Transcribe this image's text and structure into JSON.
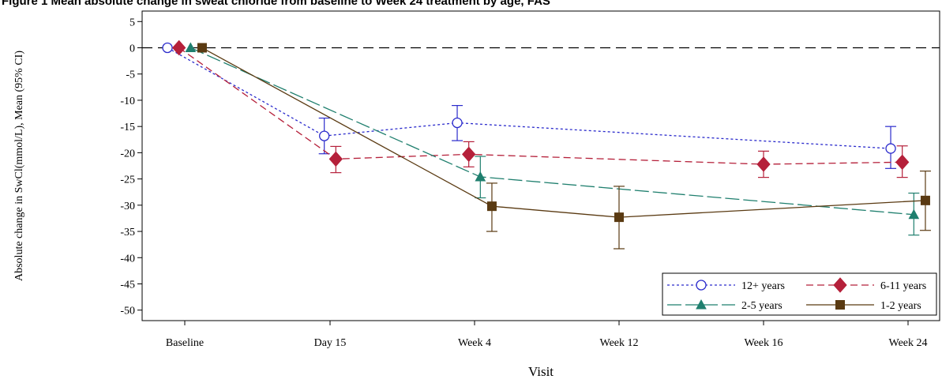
{
  "title": "Figure 1 Mean absolute change in sweat chloride from baseline to Week 24 treatment by age, FAS",
  "chart_data": {
    "type": "line",
    "xlabel": "Visit",
    "ylabel": "Absolute change in SwCl(mmol/L), Mean (95% CI)",
    "categories": [
      "Baseline",
      "Day 15",
      "Week 4",
      "Week 12",
      "Week 16",
      "Week 24"
    ],
    "ylim": [
      -52,
      7
    ],
    "yticks": [
      5,
      0,
      -5,
      -10,
      -15,
      -20,
      -25,
      -30,
      -35,
      -40,
      -45,
      -50
    ],
    "reference_line": 0,
    "legend_position": "bottom-right",
    "series": [
      {
        "name": "12+ years",
        "color": "#2b2bcc",
        "marker": "circle-open",
        "dash": "3,3",
        "points": [
          {
            "x": "Baseline",
            "offset": -0.12,
            "y": 0,
            "lo": null,
            "hi": null
          },
          {
            "x": "Day 15",
            "offset": -0.04,
            "y": -16.8,
            "lo": -20.2,
            "hi": -13.4
          },
          {
            "x": "Week 4",
            "offset": -0.12,
            "y": -14.3,
            "lo": -17.7,
            "hi": -11.0
          },
          {
            "x": "Week 24",
            "offset": -0.12,
            "y": -19.2,
            "lo": -23.0,
            "hi": -15.0
          }
        ]
      },
      {
        "name": "6-11 years",
        "color": "#b5203a",
        "marker": "diamond",
        "dash": "9,5",
        "points": [
          {
            "x": "Baseline",
            "offset": -0.04,
            "y": 0,
            "lo": null,
            "hi": null
          },
          {
            "x": "Day 15",
            "offset": 0.04,
            "y": -21.2,
            "lo": -23.8,
            "hi": -18.8
          },
          {
            "x": "Week 4",
            "offset": -0.04,
            "y": -20.3,
            "lo": -22.7,
            "hi": -17.9
          },
          {
            "x": "Week 16",
            "offset": 0.0,
            "y": -22.2,
            "lo": -24.7,
            "hi": -19.7
          },
          {
            "x": "Week 24",
            "offset": -0.04,
            "y": -21.8,
            "lo": -24.7,
            "hi": -18.7
          }
        ]
      },
      {
        "name": "2-5 years",
        "color": "#1f7f6e",
        "marker": "triangle",
        "dash": "18,5",
        "points": [
          {
            "x": "Baseline",
            "offset": 0.04,
            "y": 0,
            "lo": null,
            "hi": null
          },
          {
            "x": "Week 4",
            "offset": 0.04,
            "y": -24.6,
            "lo": -28.6,
            "hi": -20.7
          },
          {
            "x": "Week 24",
            "offset": 0.04,
            "y": -31.8,
            "lo": -35.7,
            "hi": -27.7
          }
        ]
      },
      {
        "name": "1-2 years",
        "color": "#5a3a12",
        "marker": "square",
        "dash": "none",
        "points": [
          {
            "x": "Baseline",
            "offset": 0.12,
            "y": 0,
            "lo": null,
            "hi": null
          },
          {
            "x": "Week 4",
            "offset": 0.12,
            "y": -30.2,
            "lo": -35.0,
            "hi": -25.8
          },
          {
            "x": "Week 12",
            "offset": 0.0,
            "y": -32.3,
            "lo": -38.3,
            "hi": -26.4
          },
          {
            "x": "Week 24",
            "offset": 0.12,
            "y": -29.1,
            "lo": -34.8,
            "hi": -23.5
          }
        ]
      }
    ]
  }
}
